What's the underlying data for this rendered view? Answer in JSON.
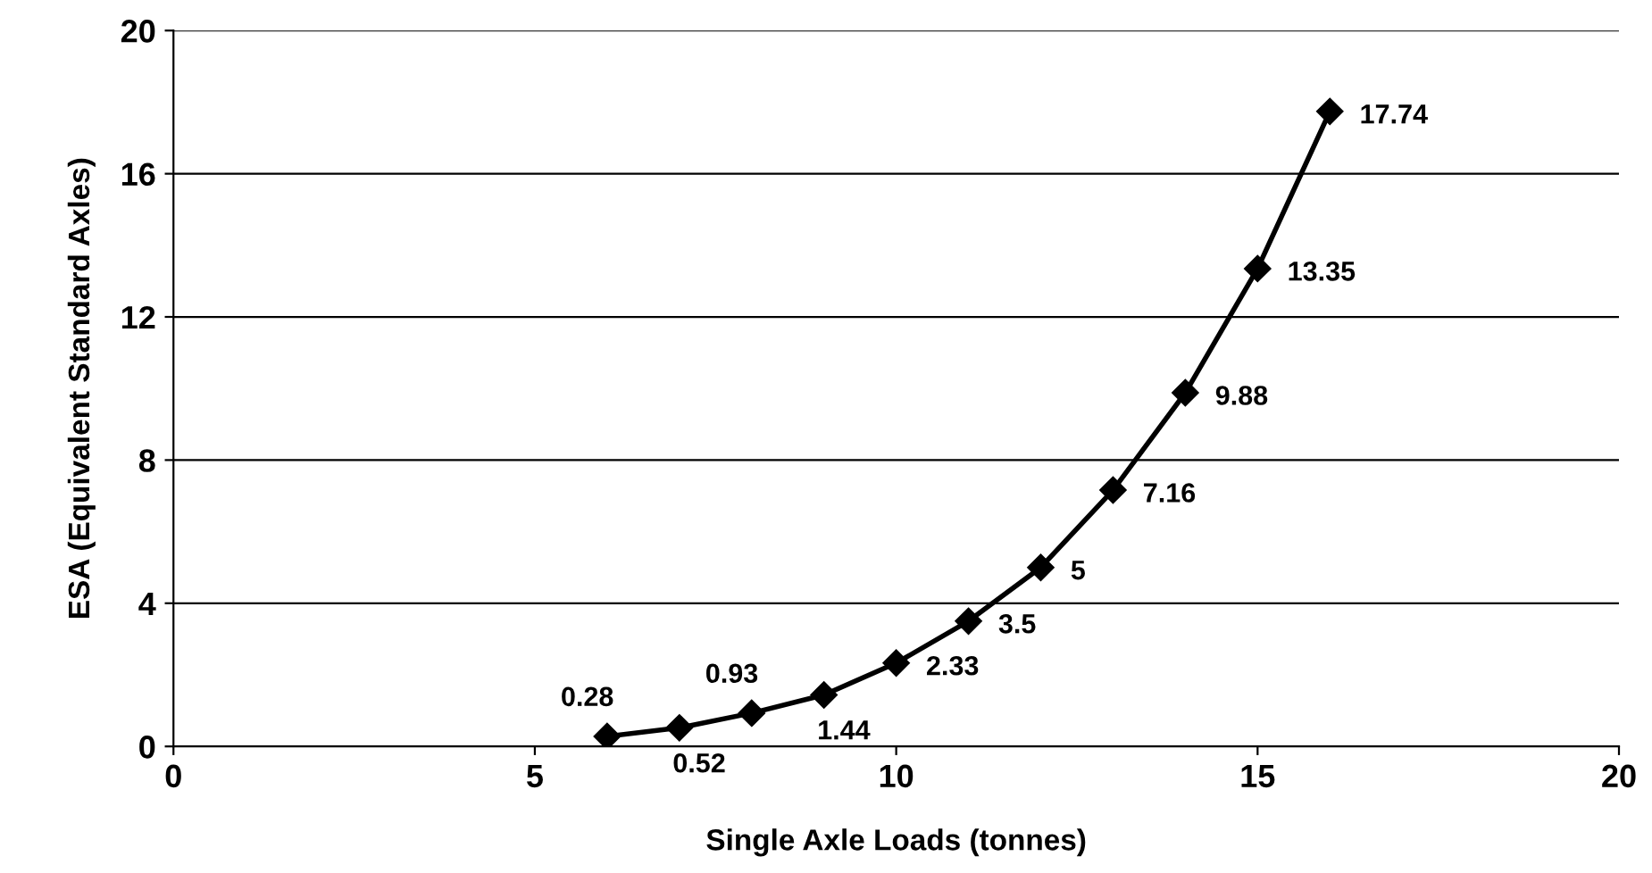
{
  "chart_data": {
    "type": "line",
    "xlabel": "Single Axle Loads (tonnes)",
    "ylabel": "ESA (Equivalent Standard Axles)",
    "x": [
      6,
      7,
      8,
      9,
      10,
      11,
      12,
      13,
      14,
      15,
      16
    ],
    "series": [
      {
        "color": "#000000",
        "values": [
          0.28,
          0.52,
          0.93,
          1.44,
          2.33,
          3.5,
          5,
          7.16,
          9.88,
          13.35,
          17.74
        ]
      }
    ],
    "data_labels": true,
    "marker": "diamond",
    "line_style": "solid",
    "grid": "y",
    "xlim": [
      0,
      20
    ],
    "xticks": [
      0,
      5,
      10,
      15,
      20
    ],
    "ylim": [
      0,
      20
    ],
    "yticks": [
      0,
      4,
      8,
      12,
      16,
      20
    ]
  }
}
